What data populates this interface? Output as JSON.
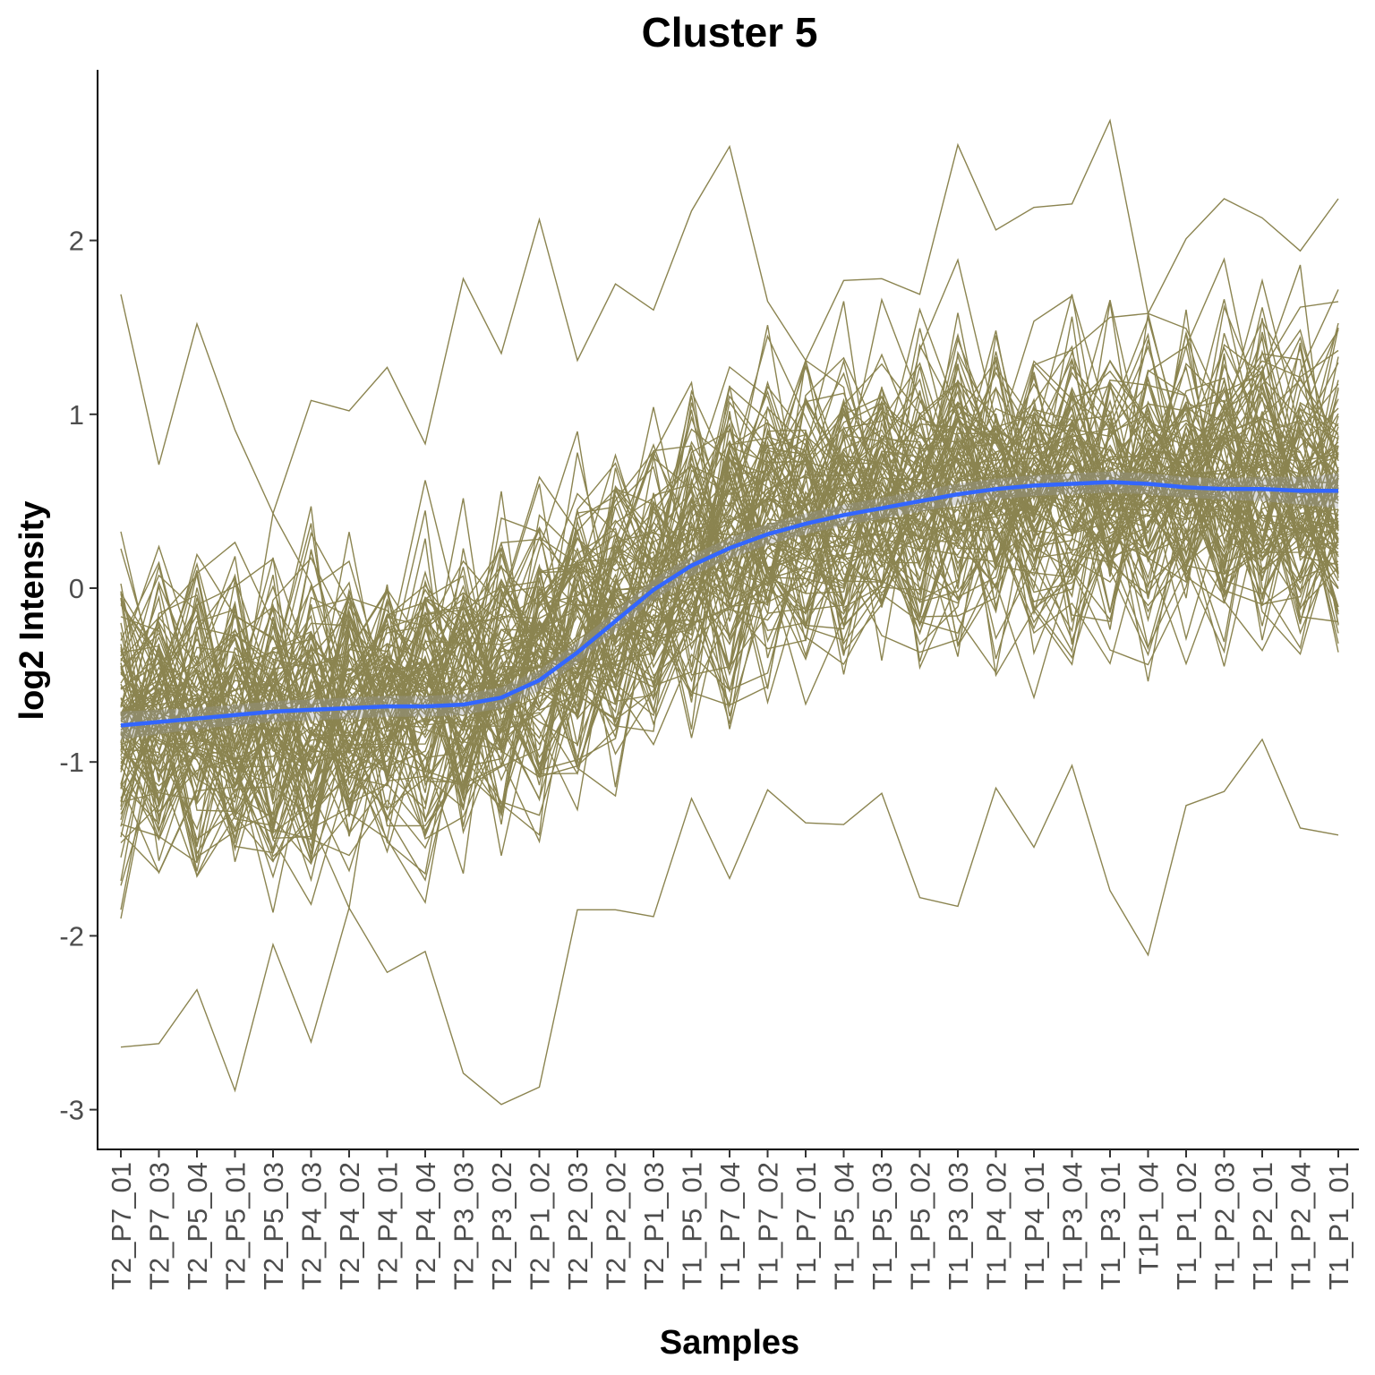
{
  "chart_data": {
    "type": "line",
    "title": "Cluster 5",
    "xlabel": "Samples",
    "ylabel": "log2 Intensity",
    "ylim": [
      -3.3,
      3.0
    ],
    "yticks": [
      2,
      1,
      0,
      -1,
      -2,
      -3
    ],
    "grid": false,
    "legend": "none",
    "categories": [
      "T2_P7_01",
      "T2_P7_03",
      "T2_P5_04",
      "T2_P5_01",
      "T2_P5_03",
      "T2_P4_03",
      "T2_P4_02",
      "T2_P4_01",
      "T2_P4_04",
      "T2_P3_03",
      "T2_P3_02",
      "T2_P1_02",
      "T2_P2_03",
      "T2_P2_02",
      "T2_P1_03",
      "T1_P5_01",
      "T1_P7_04",
      "T1_P7_02",
      "T1_P7_01",
      "T1_P5_04",
      "T1_P5_03",
      "T1_P5_02",
      "T1_P3_03",
      "T1_P4_02",
      "T1_P4_01",
      "T1_P3_04",
      "T1_P3_01",
      "T1P1_04",
      "T1_P1_02",
      "T1_P2_03",
      "T1_P2_01",
      "T1_P2_04",
      "T1_P1_01"
    ],
    "individual_profiles": {
      "count": 110,
      "color": "#8b8450",
      "baseline_start": -0.75,
      "baseline_end": 0.6,
      "spread": 0.75,
      "max_profile": [
        1.69,
        0.71,
        1.52,
        0.91,
        0.43,
        1.08,
        1.02,
        1.27,
        0.83,
        1.78,
        1.35,
        2.12,
        1.31,
        1.75,
        1.6,
        2.17,
        2.54,
        1.65,
        1.31,
        1.77,
        1.78,
        1.69,
        2.55,
        2.06,
        2.19,
        2.21,
        2.69,
        1.58,
        2.01,
        2.24,
        2.13,
        1.94,
        2.24
      ],
      "min_profile": [
        -2.64,
        -2.62,
        -2.31,
        -2.89,
        -2.05,
        -2.61,
        -1.84,
        -2.21,
        -2.09,
        -2.79,
        -2.97,
        -2.87,
        -1.85,
        -1.85,
        -1.89,
        -1.21,
        -1.67,
        -1.16,
        -1.35,
        -1.36,
        -1.18,
        -1.78,
        -1.83,
        -1.15,
        -1.49,
        -1.02,
        -1.74,
        -2.11,
        -1.25,
        -1.17,
        -0.87,
        -1.38,
        -1.42
      ]
    },
    "series": [
      {
        "type": "smooth",
        "color": "#3366ff",
        "ribbon_color": "#999999",
        "values": [
          -0.79,
          -0.77,
          -0.75,
          -0.73,
          -0.71,
          -0.7,
          -0.69,
          -0.68,
          -0.68,
          -0.67,
          -0.63,
          -0.53,
          -0.37,
          -0.19,
          -0.01,
          0.13,
          0.23,
          0.31,
          0.37,
          0.42,
          0.46,
          0.5,
          0.54,
          0.57,
          0.59,
          0.6,
          0.61,
          0.6,
          0.58,
          0.57,
          0.57,
          0.56,
          0.56
        ],
        "ribbon_halfwidth": [
          0.08,
          0.07,
          0.06,
          0.06,
          0.06,
          0.06,
          0.06,
          0.06,
          0.06,
          0.06,
          0.06,
          0.06,
          0.06,
          0.06,
          0.06,
          0.06,
          0.06,
          0.06,
          0.06,
          0.06,
          0.06,
          0.06,
          0.06,
          0.06,
          0.06,
          0.06,
          0.06,
          0.06,
          0.06,
          0.06,
          0.07,
          0.08,
          0.1
        ]
      }
    ]
  }
}
